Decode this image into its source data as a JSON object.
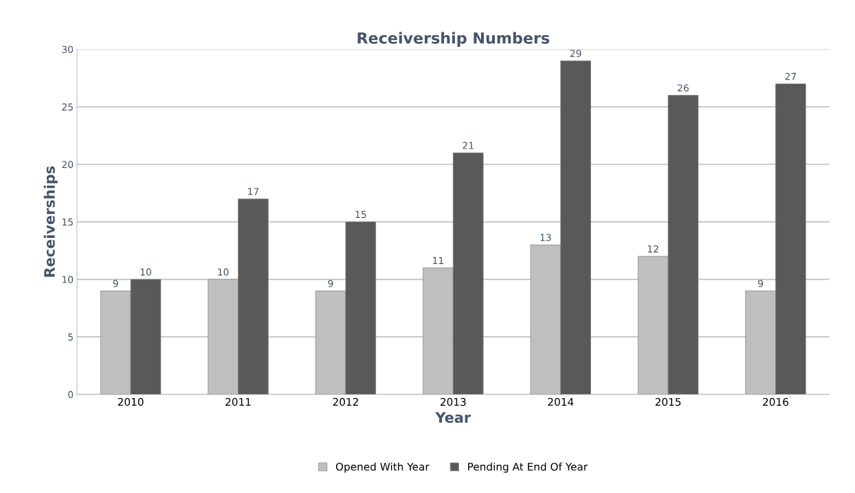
{
  "chart_data": {
    "type": "bar",
    "title": "Receivership Numbers",
    "xlabel": "Year",
    "ylabel": "Receiverships",
    "categories": [
      "2010",
      "2011",
      "2012",
      "2013",
      "2014",
      "2015",
      "2016"
    ],
    "series": [
      {
        "name": "Opened With Year",
        "color": "#bfbfbf",
        "values": [
          9,
          10,
          9,
          11,
          13,
          12,
          9
        ]
      },
      {
        "name": "Pending At End Of Year",
        "color": "#595959",
        "values": [
          10,
          17,
          15,
          21,
          29,
          26,
          27
        ]
      }
    ],
    "ylim": [
      0,
      30
    ],
    "yticks": [
      0,
      5,
      10,
      15,
      20,
      25,
      30
    ],
    "grid": "y",
    "data_labels": true,
    "legend": "bottom"
  }
}
